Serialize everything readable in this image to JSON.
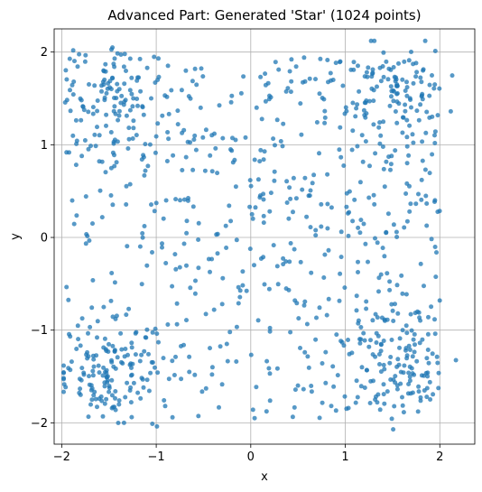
{
  "chart_data": {
    "type": "scatter",
    "title": "Advanced Part: Generated 'Star' (1024 points)",
    "xlabel": "x",
    "ylabel": "y",
    "xlim": [
      -2.08,
      2.37
    ],
    "ylim": [
      -2.23,
      2.25
    ],
    "xticks": [
      -2,
      -1,
      0,
      1,
      2
    ],
    "xtick_labels": [
      "−2",
      "−1",
      "0",
      "1",
      "2"
    ],
    "yticks": [
      -2,
      -1,
      0,
      1,
      2
    ],
    "ytick_labels": [
      "−2",
      "−1",
      "0",
      "1",
      "2"
    ],
    "grid": true,
    "point_count": 1024,
    "marker_color": "#1f77b4",
    "marker_alpha": 0.75,
    "distribution": "four corner-clustered square spokes centred at (±1.5, ±1.5) over a diffuse square region spanning roughly [-2, 2] in both axes",
    "sample_seed": 1024
  }
}
